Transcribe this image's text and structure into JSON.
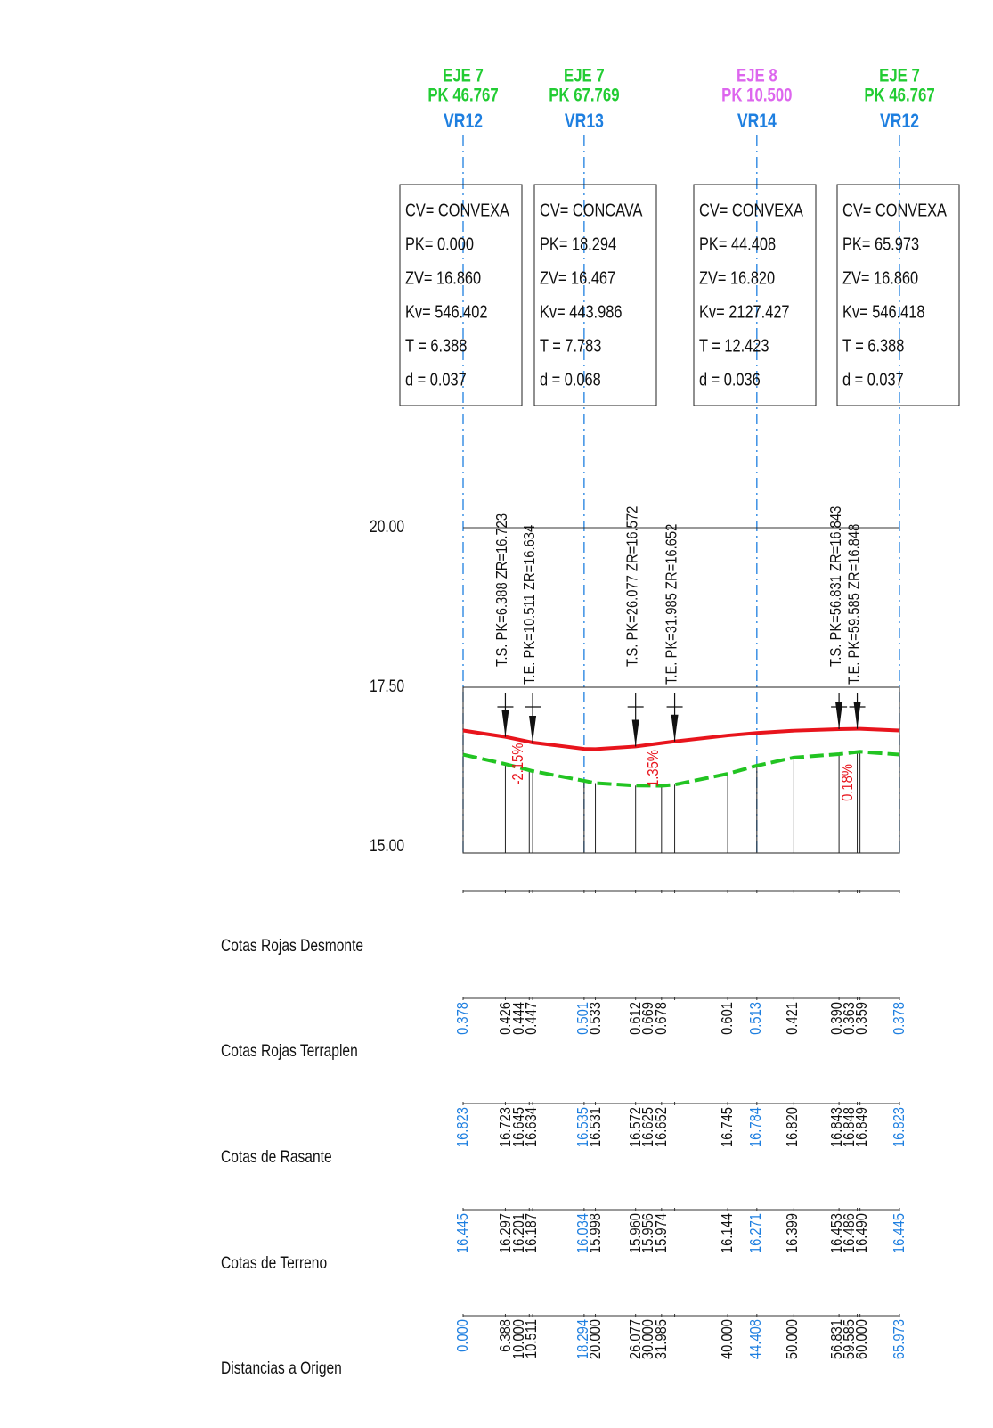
{
  "headers": [
    {
      "eje": "EJE 7",
      "pk": "PK 46.767",
      "vr": "VR12",
      "color": "#22cc33"
    },
    {
      "eje": "EJE 7",
      "pk": "PK 67.769",
      "vr": "VR13",
      "color": "#22cc33"
    },
    {
      "eje": "EJE 8",
      "pk": "PK 10.500",
      "vr": "VR14",
      "color": "#dd66ee"
    },
    {
      "eje": "EJE 7",
      "pk": "PK 46.767",
      "vr": "VR12",
      "color": "#22cc33"
    }
  ],
  "curves": [
    {
      "cv": "CV= CONVEXA",
      "pk": "PK= 0.000",
      "zv": "ZV= 16.860",
      "kv": "Kv= 546.402",
      "t": "T = 6.388",
      "d": "d = 0.037"
    },
    {
      "cv": "CV= CONCAVA",
      "pk": "PK= 18.294",
      "zv": "ZV= 16.467",
      "kv": "Kv= 443.986",
      "t": "T = 7.783",
      "d": "d = 0.068"
    },
    {
      "cv": "CV= CONVEXA",
      "pk": "PK= 44.408",
      "zv": "ZV= 16.820",
      "kv": "Kv= 2127.427",
      "t": "T = 12.423",
      "d": "d = 0.036"
    },
    {
      "cv": "CV= CONVEXA",
      "pk": "PK= 65.973",
      "zv": "ZV= 16.860",
      "kv": "Kv= 546.418",
      "t": "T = 6.388",
      "d": "d = 0.037"
    }
  ],
  "elevations": [
    "20.00",
    "17.50",
    "15.00"
  ],
  "tangent_points": [
    "T.S. PK=6.388 ZR=16.723",
    "T.E. PK=10.511 ZR=16.634",
    "T.S. PK=26.077 ZR=16.572",
    "T.E. PK=31.985 ZR=16.652",
    "T.S. PK=56.831 ZR=16.843",
    "T.E. PK=59.585 ZR=16.848"
  ],
  "slopes": [
    "-2.15%",
    "1.35%",
    "0.18%"
  ],
  "table": {
    "rows": [
      {
        "label": "Cotas Rojas Desmonte"
      },
      {
        "label": "Cotas Rojas Terraplen",
        "values": [
          "0.378",
          "0.426",
          "0.444",
          "0.447",
          "0.501",
          "0.533",
          "0.612",
          "0.669",
          "0.678",
          "0.601",
          "0.513",
          "0.421",
          "0.390",
          "0.363",
          "0.359",
          "0.378"
        ]
      },
      {
        "label": "Cotas de Rasante",
        "values": [
          "16.823",
          "16.723",
          "16.645",
          "16.634",
          "16.535",
          "16.531",
          "16.572",
          "16.625",
          "16.652",
          "16.745",
          "16.784",
          "16.820",
          "16.843",
          "16.848",
          "16.849",
          "16.823"
        ]
      },
      {
        "label": "Cotas de Terreno",
        "values": [
          "16.445",
          "16.297",
          "16.201",
          "16.187",
          "16.034",
          "15.998",
          "15.960",
          "15.956",
          "15.974",
          "16.144",
          "16.271",
          "16.399",
          "16.453",
          "16.486",
          "16.490",
          "16.445"
        ]
      },
      {
        "label": "Distancias a Origen",
        "values": [
          "0.000",
          "6.388",
          "10.000",
          "10.511",
          "18.294",
          "20.000",
          "26.077",
          "30.000",
          "31.985",
          "40.000",
          "44.408",
          "50.000",
          "56.831",
          "59.585",
          "60.000",
          "65.973"
        ]
      }
    ]
  }
}
